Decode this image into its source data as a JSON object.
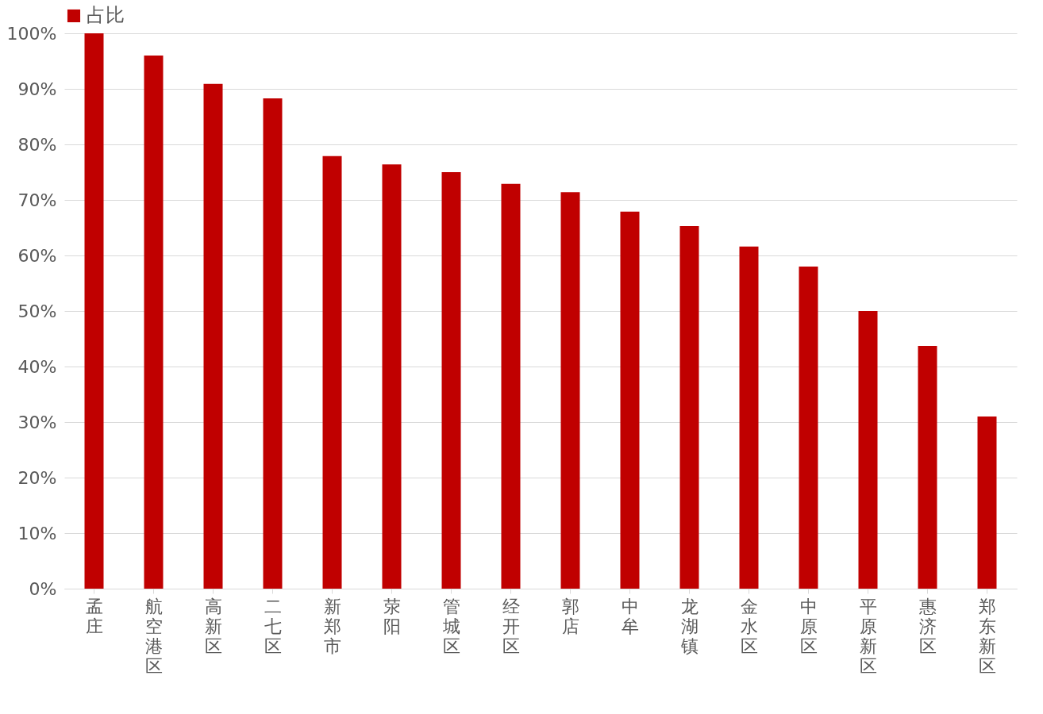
{
  "chart_data": {
    "type": "bar",
    "categories": [
      "孟庄",
      "航空港区",
      "高新区",
      "二七区",
      "新郑市",
      "荥阳",
      "管城区",
      "经开区",
      "郭店",
      "中牟",
      "龙湖镇",
      "金水区",
      "中原区",
      "平原新区",
      "惠济区",
      "郑东新区"
    ],
    "series": [
      {
        "name": "占比",
        "color": "#c00000",
        "values": [
          100,
          96,
          90.9,
          88.3,
          77.9,
          76.4,
          75,
          72.9,
          71.4,
          67.9,
          65.3,
          61.6,
          58,
          50,
          43.7,
          31
        ]
      }
    ],
    "ylim": [
      0,
      100
    ],
    "yticks": [
      {
        "value": 0,
        "label": "0%"
      },
      {
        "value": 10,
        "label": "10%"
      },
      {
        "value": 20,
        "label": "20%"
      },
      {
        "value": 30,
        "label": "30%"
      },
      {
        "value": 40,
        "label": "40%"
      },
      {
        "value": 50,
        "label": "50%"
      },
      {
        "value": 60,
        "label": "60%"
      },
      {
        "value": 70,
        "label": "70%"
      },
      {
        "value": 80,
        "label": "80%"
      },
      {
        "value": 90,
        "label": "90%"
      },
      {
        "value": 100,
        "label": "100%"
      }
    ],
    "grid": "y",
    "legend": "top"
  }
}
